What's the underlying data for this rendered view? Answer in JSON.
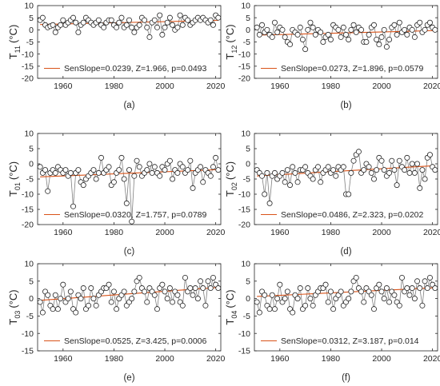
{
  "chart_data": [
    {
      "type": "line",
      "caption": "(a)",
      "ylabel": {
        "base": "T",
        "sub": "11",
        "unit": "(°C)"
      },
      "xlim": [
        1950,
        2022
      ],
      "ylim": [
        -20,
        10
      ],
      "xticks": [
        1960,
        1980,
        2000,
        2020
      ],
      "yticks": [
        -20,
        -15,
        -10,
        -5,
        0,
        5,
        10
      ],
      "legend": {
        "label": "SenSlope=0.0239, Z=1.966, p=0.0493",
        "placement": "bottom-right"
      },
      "trend_color": "#d95319",
      "series": [
        {
          "type": "observed",
          "x": [
            1951,
            1952,
            1953,
            1954,
            1955,
            1956,
            1957,
            1958,
            1959,
            1960,
            1961,
            1962,
            1963,
            1964,
            1965,
            1966,
            1967,
            1968,
            1969,
            1970,
            1971,
            1972,
            1973,
            1974,
            1975,
            1976,
            1977,
            1978,
            1979,
            1980,
            1981,
            1982,
            1983,
            1984,
            1985,
            1986,
            1987,
            1988,
            1989,
            1990,
            1991,
            1992,
            1993,
            1994,
            1995,
            1996,
            1997,
            1998,
            1999,
            2000,
            2001,
            2002,
            2003,
            2004,
            2005,
            2006,
            2007,
            2008,
            2009,
            2010,
            2011,
            2012,
            2013,
            2014,
            2015,
            2016,
            2017,
            2018,
            2019,
            2020,
            2021
          ],
          "y": [
            4,
            5,
            2,
            1,
            1.5,
            2,
            -1,
            1,
            2,
            4,
            2,
            3,
            4,
            5,
            3,
            -1,
            2,
            3,
            5,
            4,
            3,
            2,
            3,
            4,
            2,
            1,
            3,
            4,
            4,
            2,
            1,
            3,
            5,
            1,
            2,
            4,
            1,
            -1,
            1,
            2,
            5,
            4,
            1,
            -3,
            3,
            4,
            1,
            6,
            -2,
            1,
            3,
            5,
            2,
            0,
            1,
            6,
            2,
            5,
            4,
            2,
            3,
            4,
            5,
            4,
            5,
            4,
            3,
            4,
            2,
            6,
            5
          ]
        },
        {
          "type": "trend",
          "x": [
            1951,
            2021
          ],
          "y": [
            2.2,
            3.9
          ]
        }
      ]
    },
    {
      "type": "line",
      "caption": "(b)",
      "ylabel": {
        "base": "T",
        "sub": "12",
        "unit": "(°C)"
      },
      "xlim": [
        1950,
        2022
      ],
      "ylim": [
        -20,
        10
      ],
      "xticks": [
        1960,
        1980,
        2000,
        2020
      ],
      "yticks": [
        -20,
        -15,
        -10,
        -5,
        0,
        5,
        10
      ],
      "legend": {
        "label": "SenSlope=0.0273, Z=1.896, p=0.0579",
        "placement": "bottom-right"
      },
      "trend_color": "#d95319",
      "series": [
        {
          "type": "observed",
          "x": [
            1951,
            1952,
            1953,
            1954,
            1955,
            1956,
            1957,
            1958,
            1959,
            1960,
            1961,
            1962,
            1963,
            1964,
            1965,
            1966,
            1967,
            1968,
            1969,
            1970,
            1971,
            1972,
            1973,
            1974,
            1975,
            1976,
            1977,
            1978,
            1979,
            1980,
            1981,
            1982,
            1983,
            1984,
            1985,
            1986,
            1987,
            1988,
            1989,
            1990,
            1991,
            1992,
            1993,
            1994,
            1995,
            1996,
            1997,
            1998,
            1999,
            2000,
            2001,
            2002,
            2003,
            2004,
            2005,
            2006,
            2007,
            2008,
            2009,
            2010,
            2011,
            2012,
            2013,
            2014,
            2015,
            2016,
            2017,
            2018,
            2019,
            2020,
            2021
          ],
          "y": [
            1,
            -2,
            2,
            -1,
            0,
            -2,
            -3,
            3,
            -1,
            1,
            0,
            -3,
            -5,
            -6,
            0,
            -1,
            -2,
            1,
            -4,
            -8,
            0,
            3,
            1,
            -2,
            0,
            -1,
            -5,
            -3,
            -2,
            -4,
            2,
            1,
            0,
            -3,
            1,
            -2,
            -4,
            0,
            2,
            -1,
            1,
            0,
            -5,
            -5,
            -2,
            1,
            2,
            -4,
            -6,
            -3,
            0,
            -7,
            -4,
            1,
            2,
            -2,
            3,
            -1,
            0,
            -2,
            1,
            0,
            -3,
            2,
            3,
            -1,
            0,
            2,
            3,
            1,
            0
          ]
        },
        {
          "type": "trend",
          "x": [
            1951,
            2021
          ],
          "y": [
            -2.2,
            -0.3
          ]
        }
      ]
    },
    {
      "type": "line",
      "caption": "(c)",
      "ylabel": {
        "base": "T",
        "sub": "01",
        "unit": "(°C)"
      },
      "xlim": [
        1950,
        2022
      ],
      "ylim": [
        -20,
        10
      ],
      "xticks": [
        1960,
        1980,
        2000,
        2020
      ],
      "yticks": [
        -20,
        -15,
        -10,
        -5,
        0,
        5,
        10
      ],
      "legend": {
        "label": "SenSlope=0.0320, Z=1.757, p=0.0789",
        "placement": "bottom-right"
      },
      "trend_color": "#d95319",
      "series": [
        {
          "type": "observed",
          "x": [
            1951,
            1952,
            1953,
            1954,
            1955,
            1956,
            1957,
            1958,
            1959,
            1960,
            1961,
            1962,
            1963,
            1964,
            1965,
            1966,
            1967,
            1968,
            1969,
            1970,
            1971,
            1972,
            1973,
            1974,
            1975,
            1976,
            1977,
            1978,
            1979,
            1980,
            1981,
            1982,
            1983,
            1984,
            1985,
            1986,
            1987,
            1988,
            1989,
            1990,
            1991,
            1992,
            1993,
            1994,
            1995,
            1996,
            1997,
            1998,
            1999,
            2000,
            2001,
            2002,
            2003,
            2004,
            2005,
            2006,
            2007,
            2008,
            2009,
            2010,
            2011,
            2012,
            2013,
            2014,
            2015,
            2016,
            2017,
            2018,
            2019,
            2020,
            2021
          ],
          "y": [
            -1,
            -3,
            -2,
            -9,
            -3,
            -2,
            -3,
            -1,
            -2,
            -3,
            -2,
            -4,
            -3,
            -14,
            -3,
            -2,
            -6,
            -7,
            -5,
            -4,
            -3,
            -2,
            -5,
            -3,
            2,
            -3,
            -2,
            -1,
            -7,
            -6,
            -3,
            -2,
            2,
            -5,
            -13,
            -2,
            -19,
            -4,
            1,
            -1,
            -4,
            -3,
            -2,
            0,
            -3,
            -1,
            -3,
            -4,
            -1,
            -2,
            0,
            1,
            -5,
            -2,
            -3,
            0,
            -1,
            -3,
            -2,
            1,
            -8,
            -3,
            -2,
            -1,
            -6,
            -2,
            -3,
            -4,
            -1,
            2,
            -2
          ]
        },
        {
          "type": "trend",
          "x": [
            1951,
            2021
          ],
          "y": [
            -4.3,
            -1.9
          ]
        }
      ]
    },
    {
      "type": "line",
      "caption": "(d)",
      "ylabel": {
        "base": "T",
        "sub": "02",
        "unit": "(°C)"
      },
      "xlim": [
        1950,
        2022
      ],
      "ylim": [
        -20,
        10
      ],
      "xticks": [
        1960,
        1980,
        2000,
        2020
      ],
      "yticks": [
        -20,
        -15,
        -10,
        -5,
        0,
        5,
        10
      ],
      "legend": {
        "label": "SenSlope=0.0486, Z=2.323, p=0.0202",
        "placement": "bottom-right"
      },
      "trend_color": "#d95319",
      "series": [
        {
          "type": "observed",
          "x": [
            1951,
            1952,
            1953,
            1954,
            1955,
            1956,
            1957,
            1958,
            1959,
            1960,
            1961,
            1962,
            1963,
            1964,
            1965,
            1966,
            1967,
            1968,
            1969,
            1970,
            1971,
            1972,
            1973,
            1974,
            1975,
            1976,
            1977,
            1978,
            1979,
            1980,
            1981,
            1982,
            1983,
            1984,
            1985,
            1986,
            1987,
            1988,
            1989,
            1990,
            1991,
            1992,
            1993,
            1994,
            1995,
            1996,
            1997,
            1998,
            1999,
            2000,
            2001,
            2002,
            2003,
            2004,
            2005,
            2006,
            2007,
            2008,
            2009,
            2010,
            2011,
            2012,
            2013,
            2014,
            2015,
            2016,
            2017,
            2018,
            2019,
            2020,
            2021
          ],
          "y": [
            -2,
            -3,
            -4,
            -10,
            -3,
            -13,
            -4,
            -3,
            -5,
            -4,
            -3,
            -6,
            -2,
            -7,
            -1,
            -3,
            -6,
            -2,
            -2,
            -1,
            -3,
            -4,
            -5,
            -2,
            -1,
            -6,
            -3,
            -2,
            -1,
            -3,
            -2,
            -4,
            -1,
            -2,
            -1,
            -10,
            -10,
            -3,
            1,
            3,
            4,
            -3,
            -2,
            0,
            -1,
            -3,
            -5,
            -2,
            2,
            1,
            -2,
            -4,
            -3,
            1,
            -2,
            -7,
            1,
            -1,
            -2,
            2,
            -3,
            0,
            -3,
            0,
            -8,
            -2,
            -5,
            2,
            3,
            -1,
            -2
          ]
        },
        {
          "type": "trend",
          "x": [
            1951,
            2021
          ],
          "y": [
            -4.0,
            -0.6
          ]
        }
      ]
    },
    {
      "type": "line",
      "caption": "(e)",
      "ylabel": {
        "base": "T",
        "sub": "03",
        "unit": "(°C)"
      },
      "xlim": [
        1950,
        2022
      ],
      "ylim": [
        -15,
        10
      ],
      "xticks": [
        1960,
        1980,
        2000,
        2020
      ],
      "yticks": [
        -15,
        -10,
        -5,
        0,
        5,
        10
      ],
      "legend": {
        "label": "SenSlope=0.0525, Z=3.425, p=0.0006",
        "placement": "bottom-right"
      },
      "trend_color": "#d95319",
      "series": [
        {
          "type": "observed",
          "x": [
            1951,
            1952,
            1953,
            1954,
            1955,
            1956,
            1957,
            1958,
            1959,
            1960,
            1961,
            1962,
            1963,
            1964,
            1965,
            1966,
            1967,
            1968,
            1969,
            1970,
            1971,
            1972,
            1973,
            1974,
            1975,
            1976,
            1977,
            1978,
            1979,
            1980,
            1981,
            1982,
            1983,
            1984,
            1985,
            1986,
            1987,
            1988,
            1989,
            1990,
            1991,
            1992,
            1993,
            1994,
            1995,
            1996,
            1997,
            1998,
            1999,
            2000,
            2001,
            2002,
            2003,
            2004,
            2005,
            2006,
            2007,
            2008,
            2009,
            2010,
            2011,
            2012,
            2013,
            2014,
            2015,
            2016,
            2017,
            2018,
            2019,
            2020,
            2021
          ],
          "y": [
            -1,
            -4,
            2,
            1,
            -2,
            -3,
            1,
            -3,
            0,
            4,
            -1,
            0,
            2,
            -3,
            -4,
            1,
            0,
            3,
            -3,
            -2,
            3,
            0,
            -2,
            1,
            2,
            3,
            3,
            4,
            -1,
            2,
            -3,
            0,
            1,
            2,
            -2,
            -1,
            0,
            2,
            5,
            6,
            3,
            2,
            -1,
            3,
            2,
            1,
            -3,
            3,
            4,
            2,
            0,
            3,
            -1,
            2,
            1,
            -1,
            -2,
            6,
            2,
            3,
            1,
            3,
            0,
            5,
            3,
            -2,
            5,
            3,
            6,
            4,
            3
          ]
        },
        {
          "type": "trend",
          "x": [
            1951,
            2021
          ],
          "y": [
            -0.5,
            3.2
          ]
        }
      ]
    },
    {
      "type": "line",
      "caption": "(f)",
      "ylabel": {
        "base": "T",
        "sub": "04",
        "unit": "(°C)"
      },
      "xlim": [
        1950,
        2022
      ],
      "ylim": [
        -15,
        10
      ],
      "xticks": [
        1960,
        1980,
        2000,
        2020
      ],
      "yticks": [
        -15,
        -10,
        -5,
        0,
        5,
        10
      ],
      "legend": {
        "label": "SenSlope=0.0312, Z=3.187, p=0.014",
        "placement": "bottom-right"
      },
      "trend_color": "#d95319",
      "series": [
        {
          "type": "observed",
          "x": [
            1951,
            1952,
            1953,
            1954,
            1955,
            1956,
            1957,
            1958,
            1959,
            1960,
            1961,
            1962,
            1963,
            1964,
            1965,
            1966,
            1967,
            1968,
            1969,
            1970,
            1971,
            1972,
            1973,
            1974,
            1975,
            1976,
            1977,
            1978,
            1979,
            1980,
            1981,
            1982,
            1983,
            1984,
            1985,
            1986,
            1987,
            1988,
            1989,
            1990,
            1991,
            1992,
            1993,
            1994,
            1995,
            1996,
            1997,
            1998,
            1999,
            2000,
            2001,
            2002,
            2003,
            2004,
            2005,
            2006,
            2007,
            2008,
            2009,
            2010,
            2011,
            2012,
            2013,
            2014,
            2015,
            2016,
            2017,
            2018,
            2019,
            2020,
            2021
          ],
          "y": [
            -1,
            -4,
            2,
            1,
            -2,
            -3,
            1,
            -3,
            0,
            4,
            -1,
            0,
            2,
            -3,
            -4,
            1,
            0,
            3,
            -3,
            -2,
            3,
            0,
            -2,
            1,
            2,
            3,
            3,
            4,
            -1,
            2,
            -3,
            0,
            1,
            2,
            -2,
            -1,
            0,
            2,
            5,
            6,
            3,
            2,
            -1,
            3,
            2,
            1,
            -3,
            3,
            4,
            2,
            0,
            3,
            -1,
            2,
            1,
            -1,
            -2,
            6,
            2,
            3,
            1,
            3,
            0,
            5,
            3,
            -2,
            5,
            3,
            6,
            4,
            3
          ]
        },
        {
          "type": "trend",
          "x": [
            1951,
            2021
          ],
          "y": [
            0.6,
            3.1
          ]
        }
      ]
    }
  ]
}
